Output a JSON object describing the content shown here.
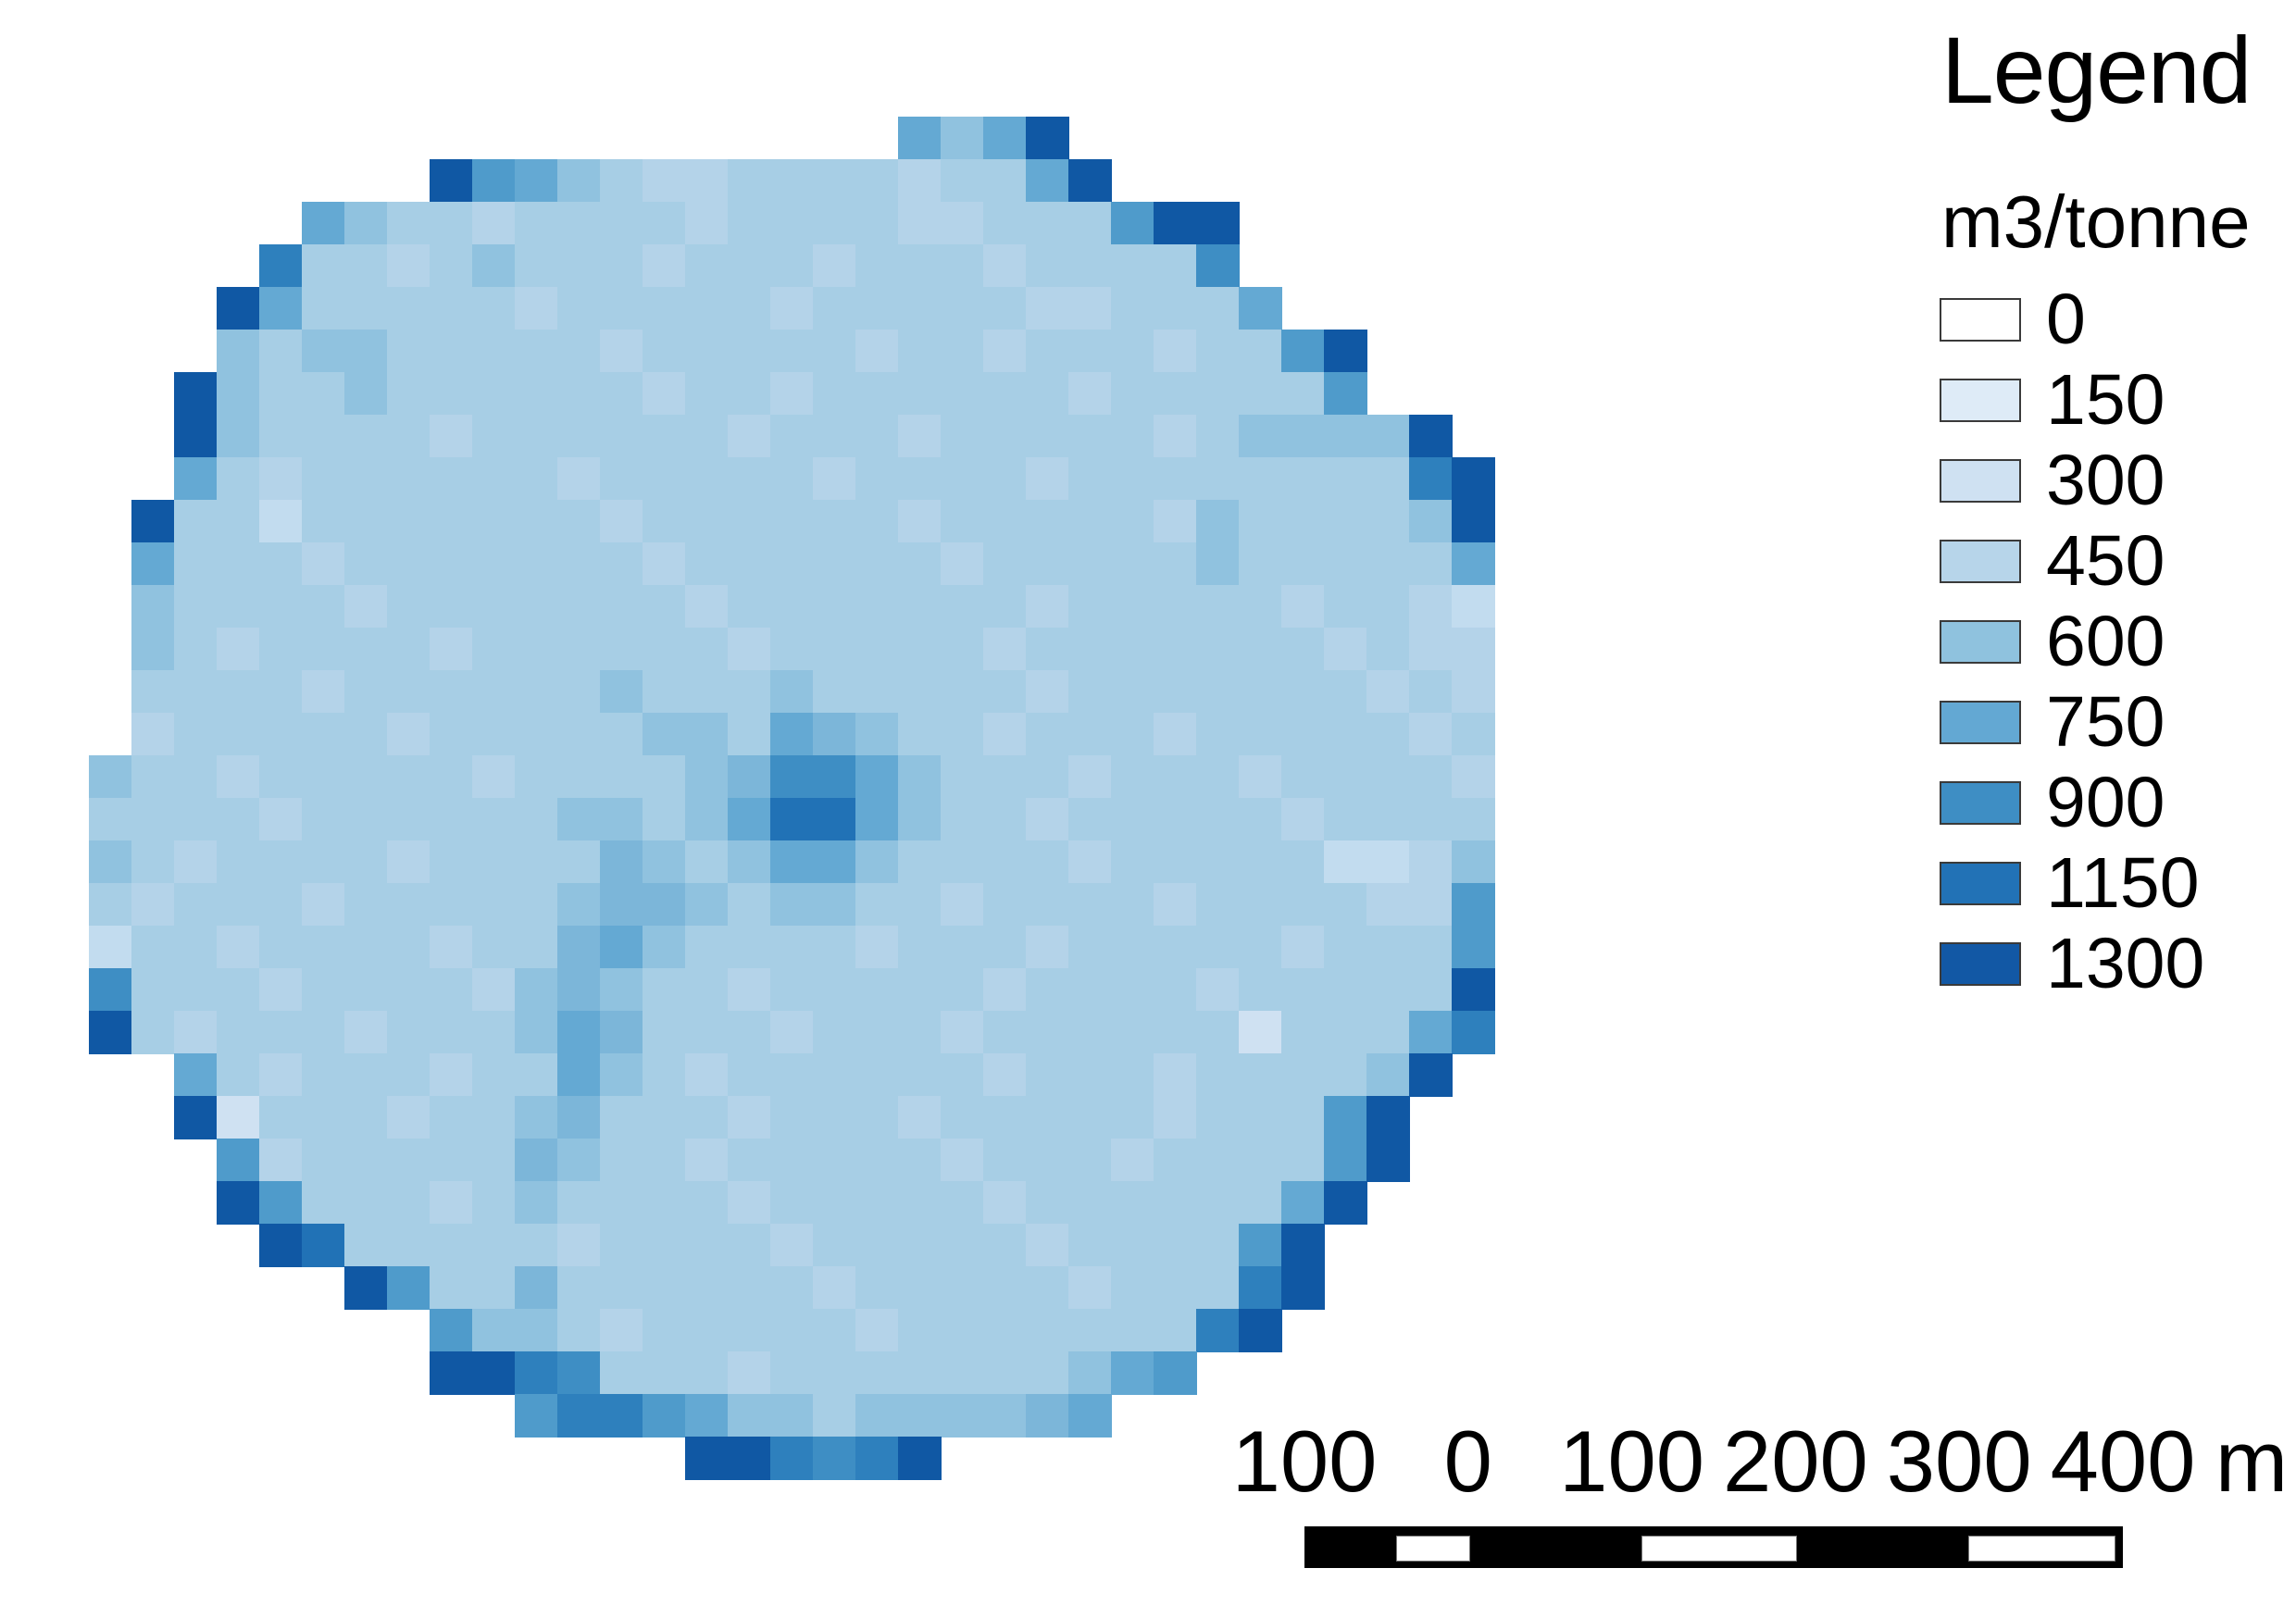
{
  "legend": {
    "title": "Legend",
    "units_label": "m3/tonne",
    "items": [
      {
        "label": "0",
        "color": "#ffffff"
      },
      {
        "label": "150",
        "color": "#deebf7"
      },
      {
        "label": "300",
        "color": "#cfe1f2"
      },
      {
        "label": "450",
        "color": "#b7d5ea"
      },
      {
        "label": "600",
        "color": "#8fc2de"
      },
      {
        "label": "750",
        "color": "#63a8d3"
      },
      {
        "label": "900",
        "color": "#3e8ec4"
      },
      {
        "label": "1150",
        "color": "#2272b6"
      },
      {
        "label": "1300",
        "color": "#1258a5"
      }
    ]
  },
  "scalebar": {
    "tick_labels": [
      "100",
      "0",
      "100",
      "200",
      "300",
      "400"
    ],
    "unit": "m"
  },
  "raster": {
    "description": "Pixelated circular raster map of m3/tonne values (interpolated Blues ramp)",
    "palette": {
      "1": "#dfecf7",
      "2": "#cfe1f2",
      "3": "#c2dcef",
      "4": "#b4d3e9",
      "5": "#a7cee5",
      "6": "#90c2df",
      "7": "#7cb6d9",
      "8": "#64a9d3",
      "9": "#4f9bcb",
      "a": "#3e8ec4",
      "b": "#2e80bd",
      "c": "#2172b6",
      "d": "#1058a4"
    },
    "rows": [
      "..................................",
      "...................868d...........",
      "........d98654455554558d..........",
      ".....86554555545555445559dd.......",
      "....b554565554555455545555a.......",
      "...d855555455555455555445558......",
      "...65665555545555545545554559d....",
      "..d655655555545545555554555559....",
      "..d6555545555554555455555456666d..",
      "..85455555545555545555455555555bd.",
      ".d553555555545555554555554655556d.",
      ".85554555555545555554555556555558.",
      ".65555455555554555555545555545543.",
      ".65455554555555455555455555554544.",
      ".55554555555655565555545555555454.",
      ".45555545555566587655455545555545.",
      "6554555554555567aa865554555455554.",
      "5555455555566568cc865545555545555.",
      "654555545555765688655554555553346.",
      "545554555556776566554555545555449.",
      "355455554557865555455545555545559.",
      "a5554555546765545555545555455555d.",
      "d5455545556875554555455555525558b.",
      "..85455545586545555554555455556d..",
      "..d255545567555455545555545559d...",
      "...945555576554555554555455559d...",
      "...d9555456555545555545555558d....",
      "....dc5555545555455555455559d.....",
      "......d95575555554555554555bd.....",
      "........966545555545555555bd......",
      "........ddba55545555555689........",
      "..........9bb98665666678..........",
      "..............ddbabd..............",
      ".................................."
    ]
  }
}
